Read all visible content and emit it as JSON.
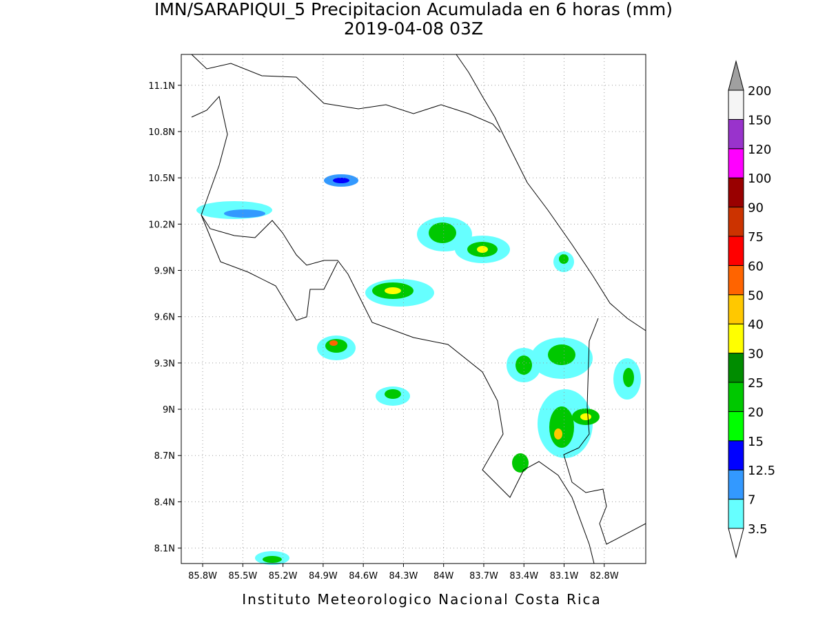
{
  "map": {
    "title": "IMN/SARAPIQUI_5 Precipitacion Acumulada en 6 horas (mm)",
    "subtitle": "2019-04-08 03Z",
    "footer": "Instituto Meteorologico Nacional Costa Rica",
    "xlim": [
      -85.96,
      -82.49
    ],
    "ylim": [
      8.0,
      11.3
    ],
    "xticks": [
      {
        "value": -85.8,
        "label": "85.8W"
      },
      {
        "value": -85.5,
        "label": "85.5W"
      },
      {
        "value": -85.2,
        "label": "85.2W"
      },
      {
        "value": -84.9,
        "label": "84.9W"
      },
      {
        "value": -84.6,
        "label": "84.6W"
      },
      {
        "value": -84.3,
        "label": "84.3W"
      },
      {
        "value": -84.0,
        "label": "84W"
      },
      {
        "value": -83.7,
        "label": "83.7W"
      },
      {
        "value": -83.4,
        "label": "83.4W"
      },
      {
        "value": -83.1,
        "label": "83.1W"
      },
      {
        "value": -82.8,
        "label": "82.8W"
      }
    ],
    "yticks": [
      {
        "value": 8.1,
        "label": "8.1N"
      },
      {
        "value": 8.4,
        "label": "8.4N"
      },
      {
        "value": 8.7,
        "label": "8.7N"
      },
      {
        "value": 9.0,
        "label": "9N"
      },
      {
        "value": 9.3,
        "label": "9.3N"
      },
      {
        "value": 9.6,
        "label": "9.6N"
      },
      {
        "value": 9.9,
        "label": "9.9N"
      },
      {
        "value": 10.2,
        "label": "10.2N"
      },
      {
        "value": 10.5,
        "label": "10.5N"
      },
      {
        "value": 10.8,
        "label": "10.8N"
      },
      {
        "value": 11.1,
        "label": "11.1N"
      }
    ],
    "grid": true,
    "colorbar": {
      "levels": [
        3.5,
        7,
        12.5,
        15,
        20,
        25,
        30,
        40,
        50,
        60,
        75,
        90,
        100,
        120,
        150,
        200
      ],
      "colors": [
        "#ffffff",
        "#66ffff",
        "#3399ff",
        "#0000ff",
        "#00ff00",
        "#00c800",
        "#008c00",
        "#ffff00",
        "#ffc800",
        "#ff6400",
        "#ff0000",
        "#cc3300",
        "#990000",
        "#ff00ff",
        "#9933cc",
        "#f5f5f5",
        "#a0a0a0"
      ]
    }
  }
}
